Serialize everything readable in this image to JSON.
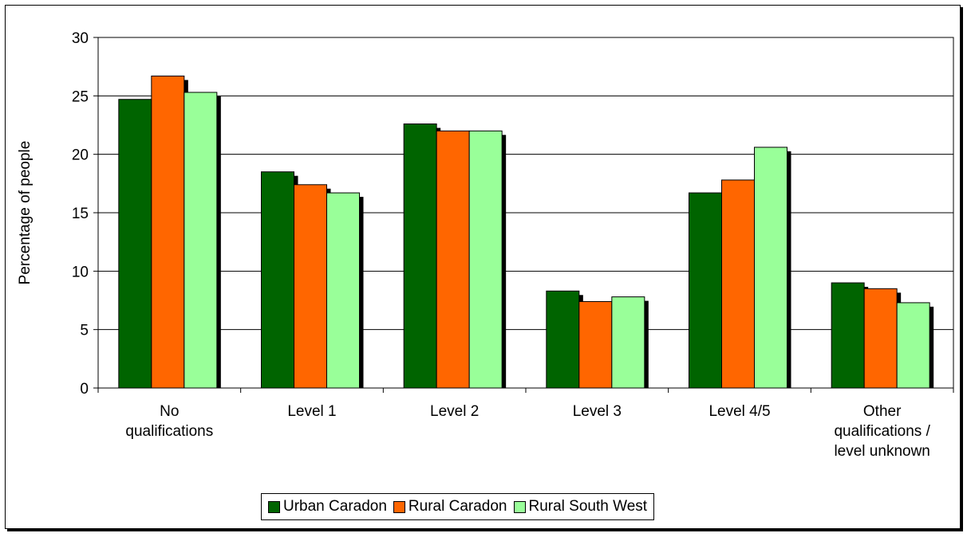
{
  "chart_data": {
    "type": "bar",
    "title": "",
    "xlabel": "",
    "ylabel": "Percentage of people",
    "ylim": [
      0,
      30
    ],
    "yticks": [
      0,
      5,
      10,
      15,
      20,
      25,
      30
    ],
    "grid": true,
    "legend_position": "bottom",
    "categories": [
      [
        "No",
        "qualifications"
      ],
      [
        "Level 1"
      ],
      [
        "Level 2"
      ],
      [
        "Level 3"
      ],
      [
        "Level 4/5"
      ],
      [
        "Other",
        "qualifications /",
        "level unknown"
      ]
    ],
    "series": [
      {
        "name": "Urban Caradon",
        "color": "#006400",
        "values": [
          24.7,
          18.5,
          22.6,
          8.3,
          16.7,
          9.0
        ]
      },
      {
        "name": "Rural Caradon",
        "color": "#ff6600",
        "values": [
          26.7,
          17.4,
          22.0,
          7.4,
          17.8,
          8.5
        ]
      },
      {
        "name": "Rural South West",
        "color": "#99ff99",
        "values": [
          25.3,
          16.7,
          22.0,
          7.8,
          20.6,
          7.3
        ]
      }
    ]
  }
}
